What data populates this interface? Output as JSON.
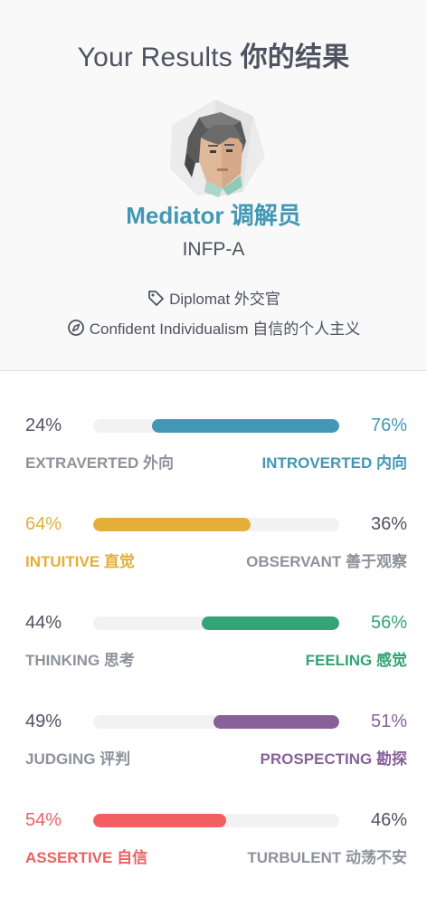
{
  "header": {
    "title_en": "Your Results",
    "title_zh": "你的结果"
  },
  "personality": {
    "name": "Mediator 调解员",
    "code": "INFP-A",
    "role": "Diplomat 外交官",
    "strategy": "Confident Individualism 自信的个人主义"
  },
  "icons": {
    "role": "tag-icon",
    "strategy": "compass-icon",
    "avatar": "mediator-avatar-icon"
  },
  "traits": [
    {
      "id": "mind",
      "left_pct": "24%",
      "right_pct": "76%",
      "left_label": "EXTRAVERTED 外向",
      "right_label": "INTROVERTED 内向",
      "dominant": "right",
      "value": 76,
      "color": "#4298b4"
    },
    {
      "id": "energy",
      "left_pct": "64%",
      "right_pct": "36%",
      "left_label": "INTUITIVE 直觉",
      "right_label": "OBSERVANT 善于观察",
      "dominant": "left",
      "value": 64,
      "color": "#e4ae3a"
    },
    {
      "id": "nature",
      "left_pct": "44%",
      "right_pct": "56%",
      "left_label": "THINKING 思考",
      "right_label": "FEELING 感觉",
      "dominant": "right",
      "value": 56,
      "color": "#33a474"
    },
    {
      "id": "tactics",
      "left_pct": "49%",
      "right_pct": "51%",
      "left_label": "JUDGING 评判",
      "right_label": "PROSPECTING 勘探",
      "dominant": "right",
      "value": 51,
      "color": "#88619a"
    },
    {
      "id": "identity",
      "left_pct": "54%",
      "right_pct": "46%",
      "left_label": "ASSERTIVE 自信",
      "right_label": "TURBULENT 动荡不安",
      "dominant": "left",
      "value": 54,
      "color": "#f25e62"
    }
  ]
}
